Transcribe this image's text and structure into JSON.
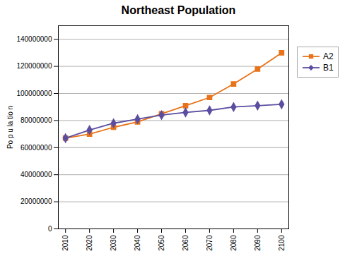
{
  "chart_data": {
    "type": "line",
    "title": "Northeast Population",
    "ylabel": "Po p u la tio n",
    "x": [
      2010,
      2020,
      2030,
      2040,
      2050,
      2060,
      2070,
      2080,
      2090,
      2100
    ],
    "series": [
      {
        "name": "A2",
        "color": "#E8731A",
        "marker": "square",
        "values": [
          67000000,
          70000000,
          75000000,
          79000000,
          85000000,
          91000000,
          97000000,
          107000000,
          118000000,
          130000000
        ]
      },
      {
        "name": "B1",
        "color": "#5B4EA0",
        "marker": "diamond",
        "values": [
          67000000,
          73000000,
          78000000,
          81000000,
          84000000,
          86000000,
          87500000,
          90000000,
          91000000,
          92000000
        ]
      }
    ],
    "xlim": [
      2007,
      2103
    ],
    "xticks": [
      2010,
      2020,
      2030,
      2040,
      2050,
      2060,
      2070,
      2080,
      2090,
      2100
    ],
    "ylim": [
      0,
      150000000
    ],
    "yticks": [
      0,
      20000000,
      40000000,
      60000000,
      80000000,
      100000000,
      120000000,
      140000000
    ],
    "grid": "y",
    "legend": "right"
  }
}
